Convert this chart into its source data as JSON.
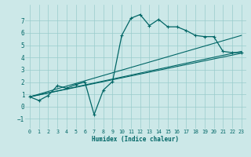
{
  "xlabel": "Humidex (Indice chaleur)",
  "xlim": [
    -0.5,
    23.5
  ],
  "ylim": [
    -1.8,
    8.3
  ],
  "yticks": [
    -1,
    0,
    1,
    2,
    3,
    4,
    5,
    6,
    7
  ],
  "xticks": [
    0,
    1,
    2,
    3,
    4,
    5,
    6,
    7,
    8,
    9,
    10,
    11,
    12,
    13,
    14,
    15,
    16,
    17,
    18,
    19,
    20,
    21,
    22,
    23
  ],
  "bg_color": "#cce8e8",
  "line_color": "#006666",
  "grid_color": "#99cccc",
  "line1_x": [
    0,
    1,
    2,
    3,
    4,
    5,
    6,
    7,
    8,
    9,
    10,
    11,
    12,
    13,
    14,
    15,
    16,
    17,
    18,
    19,
    20,
    21,
    22,
    23
  ],
  "line1_y": [
    0.8,
    0.5,
    0.9,
    1.7,
    1.5,
    1.8,
    2.0,
    -0.65,
    1.35,
    2.05,
    5.8,
    7.2,
    7.5,
    6.6,
    7.1,
    6.5,
    6.5,
    6.2,
    5.8,
    5.7,
    5.7,
    4.5,
    4.4,
    4.4
  ],
  "line2_x": [
    0,
    23
  ],
  "line2_y": [
    0.8,
    4.35
  ],
  "line3_x": [
    0,
    23
  ],
  "line3_y": [
    0.8,
    4.5
  ],
  "line4_x": [
    0,
    23
  ],
  "line4_y": [
    0.8,
    5.8
  ]
}
